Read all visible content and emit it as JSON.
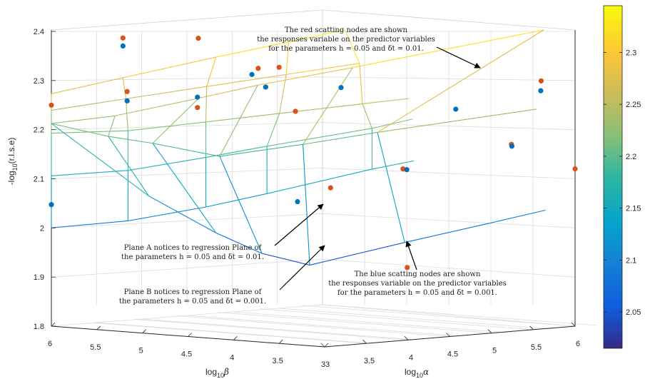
{
  "chart_data": {
    "type": "scatter",
    "kind": "3d-scatter-with-regression-planes",
    "title": "",
    "xlabel_parts": {
      "pre": "log",
      "sub": "10",
      "post": "α"
    },
    "ylabel_parts": {
      "pre": "log",
      "sub": "10",
      "post": "β"
    },
    "zlabel": "-log10(r.l.s.e)",
    "zlabel_parts": {
      "pre": "-log",
      "sub": "10",
      "post": "(r.l.s.e)"
    },
    "xlim": [
      3,
      6
    ],
    "ylim": [
      3,
      6
    ],
    "zlim": [
      1.8,
      2.4
    ],
    "grid": true,
    "view": "3d",
    "colormap": "parula",
    "alpha_ticks": [
      "3",
      "3.5",
      "4",
      "4.5",
      "5",
      "5.5",
      "6"
    ],
    "beta_ticks": [
      "6",
      "5.5",
      "5",
      "4.5",
      "4",
      "3.5",
      "3"
    ],
    "z_ticks": [
      "2.4",
      "2.3",
      "2.2",
      "2.1",
      "2",
      "1.9",
      "1.8"
    ],
    "colorbar": {
      "ticks": [
        "2.3",
        "2.25",
        "2.2",
        "2.15",
        "2.1",
        "2.05"
      ],
      "range": [
        2.015,
        2.345
      ]
    },
    "colors": {
      "red": "#D95319",
      "blue": "#0072BD"
    },
    "series": [
      {
        "name": "red",
        "screen_points": [
          [
            0.0,
            0.282
          ],
          [
            0.171,
            0.03
          ],
          [
            0.181,
            0.231
          ],
          [
            0.351,
            0.031
          ],
          [
            0.349,
            0.291
          ],
          [
            0.494,
            0.144
          ],
          [
            0.544,
            0.14
          ],
          [
            0.583,
            0.305
          ],
          [
            0.667,
            0.592
          ],
          [
            0.84,
            0.521
          ],
          [
            0.85,
            0.891
          ],
          [
            1.099,
            0.429
          ],
          [
            1.17,
            0.191
          ],
          [
            1.251,
            0.521
          ]
        ]
      },
      {
        "name": "blue",
        "screen_points": [
          [
            0.0,
            0.655
          ],
          [
            0.171,
            0.06
          ],
          [
            0.181,
            0.266
          ],
          [
            0.349,
            0.252
          ],
          [
            0.479,
            0.167
          ],
          [
            0.512,
            0.214
          ],
          [
            0.588,
            0.644
          ],
          [
            0.692,
            0.216
          ],
          [
            0.849,
            0.524
          ],
          [
            0.966,
            0.297
          ],
          [
            1.1,
            0.436
          ],
          [
            1.169,
            0.228
          ]
        ]
      }
    ],
    "planes": [
      {
        "name": "Plane A",
        "rows": [
          [
            [
              0.0,
              0.239
            ],
            [
              0.171,
              0.179
            ],
            [
              0.393,
              0.102
            ],
            [
              0.567,
              0.045
            ],
            [
              0.701,
              0.0
            ]
          ],
          [
            [
              0.0,
              0.301
            ],
            [
              0.178,
              0.258
            ],
            [
              0.371,
              0.212
            ],
            [
              0.561,
              0.167
            ],
            [
              0.736,
              0.125
            ]
          ],
          [
            [
              0.0,
              0.387
            ],
            [
              0.183,
              0.378
            ],
            [
              0.369,
              0.345
            ],
            [
              0.545,
              0.313
            ],
            [
              0.743,
              0.277
            ],
            [
              0.855,
              0.257
            ]
          ],
          [
            [
              0.0,
              0.547
            ],
            [
              0.183,
              0.527
            ],
            [
              0.369,
              0.478
            ],
            [
              0.515,
              0.436
            ],
            [
              0.766,
              0.369
            ],
            [
              0.863,
              0.334
            ]
          ],
          [
            [
              0.0,
              0.742
            ],
            [
              0.183,
              0.716
            ],
            [
              0.369,
              0.664
            ],
            [
              0.515,
              0.614
            ],
            [
              0.766,
              0.522
            ],
            [
              0.866,
              0.491
            ]
          ]
        ]
      },
      {
        "name": "Plane B",
        "rows": [
          [
            [
              0.0,
              0.351
            ],
            [
              0.152,
              0.322
            ],
            [
              0.352,
              0.256
            ],
            [
              0.493,
              0.207
            ],
            [
              0.72,
              0.141
            ],
            [
              1.176,
              0.0
            ]
          ],
          [
            [
              0.0,
              0.351
            ],
            [
              0.136,
              0.399
            ],
            [
              0.242,
              0.425
            ],
            [
              0.402,
              0.474
            ],
            [
              0.601,
              0.429
            ],
            [
              0.779,
              0.384
            ],
            [
              1.159,
              0.297
            ]
          ],
          [
            [
              0.0,
              0.351
            ],
            [
              0.233,
              0.623
            ],
            [
              0.393,
              0.761
            ],
            [
              0.503,
              0.838
            ],
            [
              0.617,
              0.882
            ],
            [
              0.844,
              0.797
            ],
            [
              1.046,
              0.725
            ],
            [
              1.18,
              0.676
            ]
          ]
        ]
      }
    ],
    "annotations": [
      {
        "name": "red-note",
        "lines": [
          "The red scatting nodes are shown",
          "the responses variable on the predictor variables",
          "for the parameters h = 0.05 and δt = 0.01."
        ]
      },
      {
        "name": "plane-a-note",
        "lines": [
          "Plane A notices to regression Plane of",
          "the parameters h = 0.05 and δt = 0.01."
        ]
      },
      {
        "name": "plane-b-note",
        "lines": [
          "Plane B notices to regression Plane of",
          "the parameters h = 0.05 and δt = 0.001."
        ]
      },
      {
        "name": "blue-note",
        "lines": [
          "The blue scatting nodes are shown",
          "the responses variable on the predictor variables",
          "for the parameters h = 0.05 and δt = 0.001."
        ]
      }
    ]
  }
}
